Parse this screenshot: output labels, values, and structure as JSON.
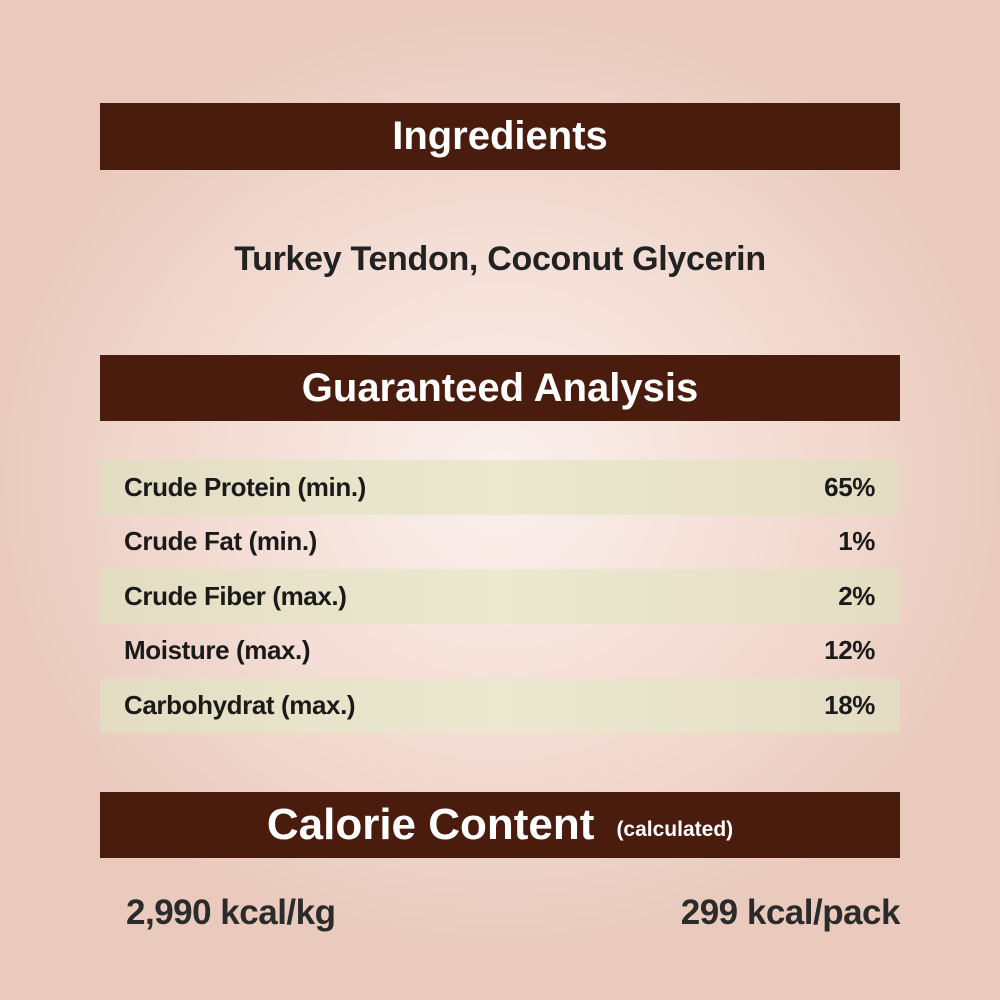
{
  "ingredients": {
    "heading": "Ingredients",
    "text": "Turkey Tendon, Coconut Glycerin"
  },
  "analysis": {
    "heading": "Guaranteed Analysis",
    "rows": [
      {
        "label": "Crude Protein (min.)",
        "value": "65%"
      },
      {
        "label": "Crude Fat (min.)",
        "value": "1%"
      },
      {
        "label": "Crude Fiber (max.)",
        "value": "2%"
      },
      {
        "label": "Moisture (max.)",
        "value": "12%"
      },
      {
        "label": "Carbohydrat (max.)",
        "value": "18%"
      }
    ]
  },
  "calorie": {
    "heading": "Calorie Content",
    "subheading": "(calculated)",
    "per_kg": "2,990 kcal/kg",
    "per_pack": "299 kcal/pack"
  },
  "colors": {
    "banner": "#4a1c0e",
    "background": "#f3dcd3",
    "row_shade": "#e8e3c8"
  }
}
